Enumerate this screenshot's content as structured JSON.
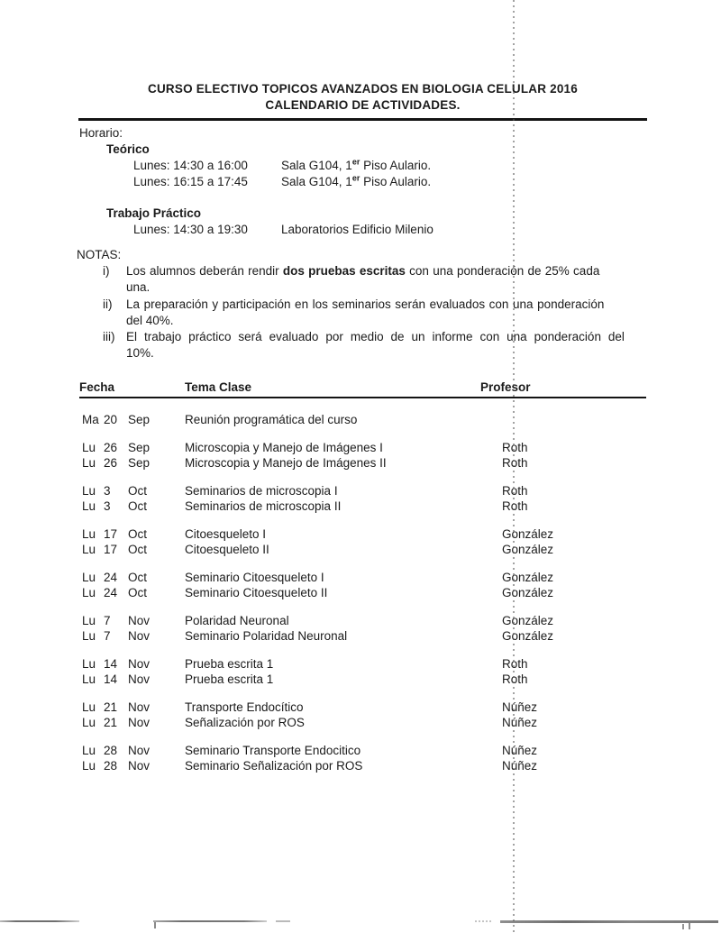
{
  "header": {
    "title_line1": "CURSO ELECTIVO TOPICOS AVANZADOS EN BIOLOGIA CELULAR 2016",
    "title_line2": "CALENDARIO DE ACTIVIDADES."
  },
  "horario": {
    "heading": "Horario:",
    "teorico": {
      "title": "Teórico",
      "rows": [
        {
          "time": "Lunes: 14:30 a 16:00",
          "place": [
            {
              "text": "Sala G104, 1"
            },
            {
              "text": "er",
              "sup": true
            },
            {
              "text": " Piso Aulario."
            }
          ]
        },
        {
          "time": "Lunes: 16:15 a 17:45",
          "place": [
            {
              "text": "Sala G104, 1"
            },
            {
              "text": "er",
              "sup": true
            },
            {
              "text": " Piso Aulario."
            }
          ]
        }
      ]
    },
    "practico": {
      "title": "Trabajo Práctico",
      "rows": [
        {
          "time": "Lunes: 14:30 a 19:30",
          "place": [
            {
              "text": "Laboratorios Edificio Milenio"
            }
          ]
        }
      ]
    }
  },
  "notas": {
    "heading": "NOTAS:",
    "lines": [
      {
        "marker": "i)",
        "ws": 0.5,
        "parts": [
          {
            "text": "Los alumnos deberán rendir "
          },
          {
            "text": "dos pruebas escritas",
            "bold": true
          },
          {
            "text": " con una ponderación de 25% cada"
          }
        ]
      },
      {
        "marker": "",
        "ws": 0,
        "parts": [
          {
            "text": "una."
          }
        ]
      },
      {
        "marker": "ii)",
        "ws": 0.8,
        "parts": [
          {
            "text": "La preparación y participación en los seminarios serán evaluados con una ponderación"
          }
        ]
      },
      {
        "marker": "",
        "ws": 0,
        "parts": [
          {
            "text": "del 40%."
          }
        ]
      },
      {
        "marker": "iii)",
        "ws": 4.2,
        "parts": [
          {
            "text": "El trabajo práctico será evaluado por medio de un informe con una ponderación del"
          }
        ]
      },
      {
        "marker": "",
        "ws": 0,
        "parts": [
          {
            "text": "10%."
          }
        ]
      }
    ]
  },
  "schedule": {
    "headers": {
      "fecha": "Fecha",
      "tema": "Tema Clase",
      "profesor": "Profesor"
    },
    "rows": [
      {
        "day": "Ma",
        "num": "20",
        "mon": "Sep",
        "tema": "Reunión programática del curso",
        "prof": "",
        "group_start": false
      },
      {
        "day": "Lu",
        "num": "26",
        "mon": "Sep",
        "tema": "Microscopia y Manejo de Imágenes I",
        "prof": "Roth",
        "group_start": true
      },
      {
        "day": "Lu",
        "num": "26",
        "mon": "Sep",
        "tema": "Microscopia y Manejo de Imágenes II",
        "prof": "Roth",
        "group_start": false
      },
      {
        "day": "Lu",
        "num": "3",
        "mon": "Oct",
        "tema": "Seminarios de microscopia I",
        "prof": "Roth",
        "group_start": true
      },
      {
        "day": "Lu",
        "num": "3",
        "mon": "Oct",
        "tema": "Seminarios de microscopia II",
        "prof": "Roth",
        "group_start": false
      },
      {
        "day": "Lu",
        "num": "17",
        "mon": "Oct",
        "tema": "Citoesqueleto I",
        "prof": "González",
        "group_start": true
      },
      {
        "day": "Lu",
        "num": "17",
        "mon": "Oct",
        "tema": "Citoesqueleto II",
        "prof": "González",
        "group_start": false
      },
      {
        "day": "Lu",
        "num": "24",
        "mon": "Oct",
        "tema": "Seminario Citoesqueleto I",
        "prof": "González",
        "group_start": true
      },
      {
        "day": "Lu",
        "num": "24",
        "mon": "Oct",
        "tema": "Seminario Citoesqueleto II",
        "prof": "González",
        "group_start": false
      },
      {
        "day": "Lu",
        "num": "7",
        "mon": "Nov",
        "tema": "Polaridad Neuronal",
        "prof": "González",
        "group_start": true
      },
      {
        "day": "Lu",
        "num": "7",
        "mon": "Nov",
        "tema": "Seminario Polaridad Neuronal",
        "prof": "González",
        "group_start": false
      },
      {
        "day": "Lu",
        "num": "14",
        "mon": "Nov",
        "tema": "Prueba escrita 1",
        "prof": "Roth",
        "group_start": true
      },
      {
        "day": "Lu",
        "num": "14",
        "mon": "Nov",
        "tema": "Prueba escrita 1",
        "prof": "Roth",
        "group_start": false
      },
      {
        "day": "Lu",
        "num": "21",
        "mon": "Nov",
        "tema": "Transporte Endocítico",
        "prof": "Núñez",
        "group_start": true
      },
      {
        "day": "Lu",
        "num": "21",
        "mon": "Nov",
        "tema": "Señalización por ROS",
        "prof": "Núñez",
        "group_start": false
      },
      {
        "day": "Lu",
        "num": "28",
        "mon": "Nov",
        "tema": "Seminario Transporte Endocitico",
        "prof": "Núñez",
        "group_start": true
      },
      {
        "day": "Lu",
        "num": "28",
        "mon": "Nov",
        "tema": "Seminario Señalización por ROS",
        "prof": "Núñez",
        "group_start": false
      }
    ]
  }
}
